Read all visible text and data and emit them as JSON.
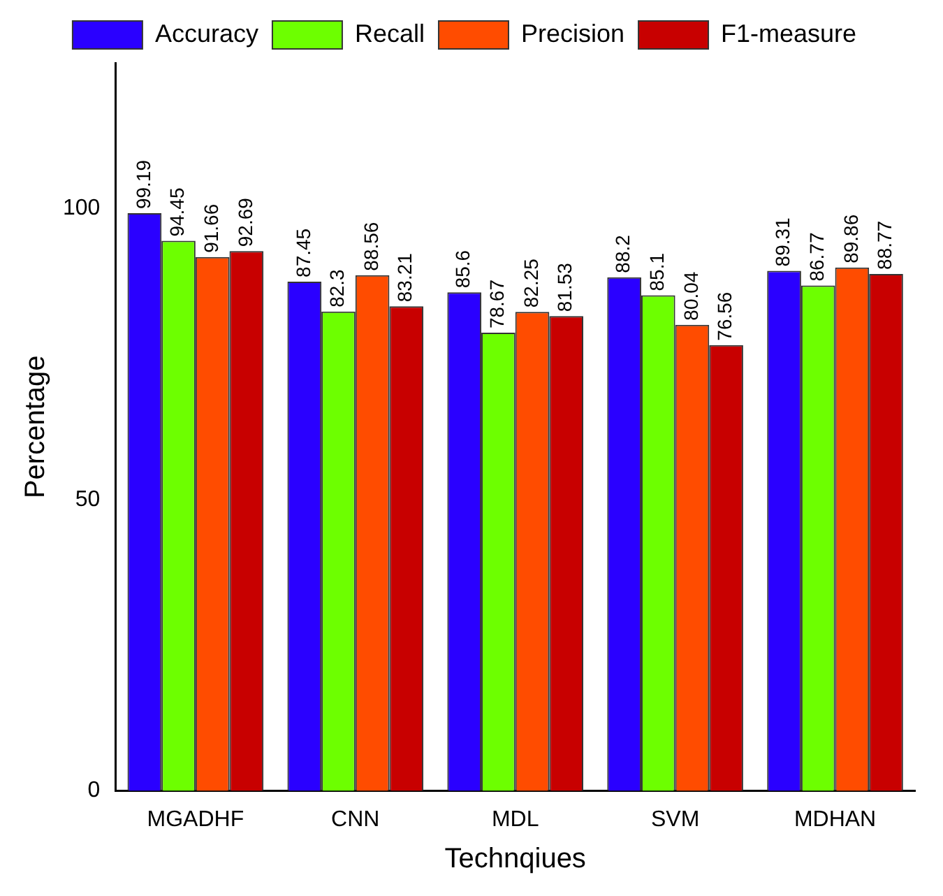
{
  "chart_data": {
    "type": "bar",
    "xlabel": "Technqiues",
    "ylabel": "Percentage",
    "categories": [
      "MGADHF",
      "CNN",
      "MDL",
      "SVM",
      "MDHAN"
    ],
    "series": [
      {
        "name": "Accuracy",
        "color": "#2a00ff",
        "values": [
          99.19,
          87.45,
          85.6,
          88.2,
          89.31
        ]
      },
      {
        "name": "Recall",
        "color": "#6dff00",
        "values": [
          94.45,
          82.3,
          78.67,
          85.1,
          86.77
        ]
      },
      {
        "name": "Precision",
        "color": "#ff4c00",
        "values": [
          91.66,
          88.56,
          82.25,
          80.04,
          89.86
        ]
      },
      {
        "name": "F1-measure",
        "color": "#c80000",
        "values": [
          92.69,
          83.21,
          81.53,
          76.56,
          88.77
        ]
      }
    ],
    "ylim": [
      0,
      125
    ],
    "yticks": [
      0,
      50,
      100
    ],
    "grid": false,
    "legend": "top",
    "data_labels": true
  }
}
